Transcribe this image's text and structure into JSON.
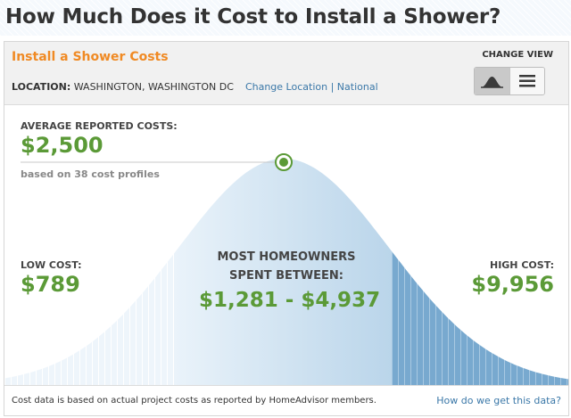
{
  "page": {
    "heading": "How Much Does it Cost to Install a Shower?"
  },
  "panel": {
    "title": "Install a Shower Costs",
    "location_label": "LOCATION:",
    "location_value": "WASHINGTON, WASHINGTON DC",
    "change_location_link": "Change Location",
    "separator": "|",
    "national_link": "National",
    "change_view_label": "CHANGE VIEW",
    "view_options": [
      {
        "name": "graph-view",
        "icon": "bell-curve-icon",
        "selected": true
      },
      {
        "name": "list-view",
        "icon": "list-lines-icon",
        "selected": false
      }
    ]
  },
  "costs": {
    "average_label": "AVERAGE REPORTED COSTS:",
    "average_value": "$2,500",
    "based_on": "based on 38 cost profiles",
    "low_label": "LOW COST:",
    "low_value": "$789",
    "high_label": "HIGH COST:",
    "high_value": "$9,956",
    "mid_label_line1": "MOST HOMEOWNERS",
    "mid_label_line2": "SPENT BETWEEN:",
    "mid_range": "$1,281 - $4,937"
  },
  "footer": {
    "note": "Cost data is based on actual project costs as reported by HomeAdvisor members.",
    "link": "How do we get this data?"
  },
  "colors": {
    "accent_orange": "#f08a24",
    "value_green": "#5b9a37",
    "link_blue": "#3b78a8",
    "curve_light": "#e4f0f9",
    "curve_mid": "#c6dcee",
    "curve_dark": "#6ea2c9"
  }
}
